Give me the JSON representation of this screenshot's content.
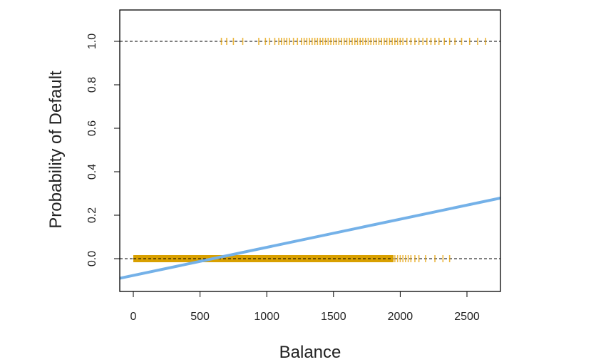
{
  "chart_data": {
    "type": "scatter",
    "title": "",
    "xlabel": "Balance",
    "ylabel": "Probability of Default",
    "xlim": [
      -100,
      2760
    ],
    "ylim": [
      -0.09,
      1.15
    ],
    "xticks": [
      0,
      500,
      1000,
      1500,
      2000,
      2500
    ],
    "yticks": [
      0.0,
      0.2,
      0.4,
      0.6,
      0.8,
      1.0
    ],
    "xtick_labels": [
      "0",
      "500",
      "1000",
      "1500",
      "2000",
      "2500"
    ],
    "ytick_labels": [
      "0.0",
      "0.2",
      "0.4",
      "0.6",
      "0.8",
      "1.0"
    ],
    "reference_lines": [
      0.0,
      1.0
    ],
    "series": [
      {
        "marker": "rug",
        "color": "#E69F00",
        "y": 1.0,
        "x": [
          660,
          700,
          750,
          820,
          940,
          990,
          1020,
          1060,
          1090,
          1110,
          1130,
          1150,
          1170,
          1200,
          1230,
          1260,
          1280,
          1300,
          1320,
          1340,
          1360,
          1380,
          1400,
          1420,
          1440,
          1460,
          1480,
          1500,
          1520,
          1540,
          1560,
          1580,
          1600,
          1620,
          1640,
          1660,
          1680,
          1700,
          1720,
          1740,
          1760,
          1780,
          1800,
          1820,
          1840,
          1860,
          1880,
          1900,
          1920,
          1940,
          1960,
          1980,
          2000,
          2020,
          2050,
          2080,
          2110,
          2140,
          2170,
          2200,
          2230,
          2260,
          2290,
          2330,
          2370,
          2410,
          2460,
          2520,
          2580,
          2640
        ]
      },
      {
        "marker": "rug",
        "color": "#E69F00",
        "y": 0.0,
        "x_band": [
          0,
          1950
        ],
        "x": [
          1960,
          1980,
          2000,
          2020,
          2040,
          2060,
          2080,
          2110,
          2140,
          2190,
          2260,
          2320,
          2370
        ]
      },
      {
        "name": "",
        "type": "line",
        "color": "#74B1E8",
        "x": [
          -100,
          2760
        ],
        "y": [
          -0.09,
          0.28
        ]
      }
    ],
    "grid": false,
    "legend": "none"
  }
}
